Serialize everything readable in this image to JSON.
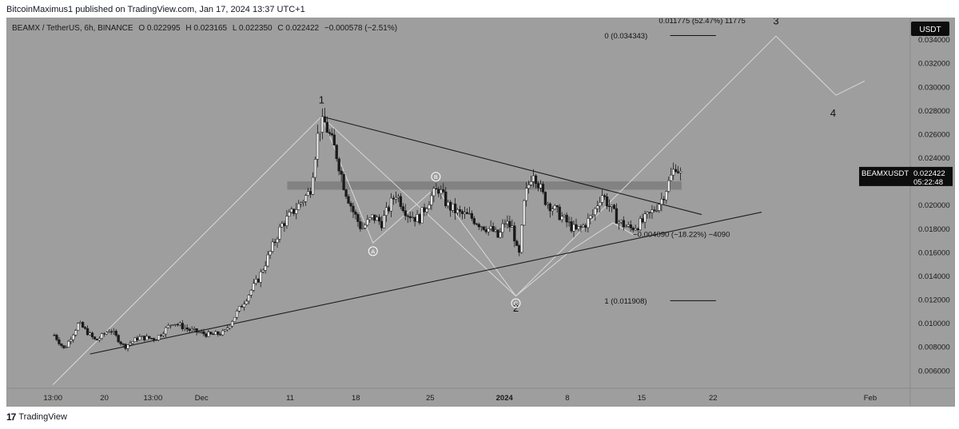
{
  "header": {
    "publisher_line": "BitcoinMaximus1 published on TradingView.com, Jan 17, 2024 13:37 UTC+1"
  },
  "footer": {
    "brand": "TradingView",
    "logo_glyph": "17"
  },
  "chart_data": {
    "type": "candlestick",
    "symbol_line": {
      "name": "BEAMX / TetherUS, 6h, BINANCE",
      "o_label": "O",
      "o": "0.022995",
      "h_label": "H",
      "h": "0.023165",
      "l_label": "L",
      "l": "0.022350",
      "c_label": "C",
      "c": "0.022422",
      "change": "−0.000578 (−2.51%)"
    },
    "currency_badge": "USDT",
    "price_tag": {
      "symbol": "BEAMXUSDT",
      "price": "0.022422",
      "countdown": "05:22:48",
      "value": 0.022422
    },
    "y_ticks": [
      {
        "label": "0.006000",
        "v": 0.006
      },
      {
        "label": "0.008000",
        "v": 0.008
      },
      {
        "label": "0.010000",
        "v": 0.01
      },
      {
        "label": "0.012000",
        "v": 0.012
      },
      {
        "label": "0.014000",
        "v": 0.014
      },
      {
        "label": "0.016000",
        "v": 0.016
      },
      {
        "label": "0.018000",
        "v": 0.018
      },
      {
        "label": "0.020000",
        "v": 0.02
      },
      {
        "label": "0.022000",
        "v": 0.022
      },
      {
        "label": "0.024000",
        "v": 0.024
      },
      {
        "label": "0.026000",
        "v": 0.026
      },
      {
        "label": "0.028000",
        "v": 0.028
      },
      {
        "label": "0.030000",
        "v": 0.03
      },
      {
        "label": "0.032000",
        "v": 0.032
      },
      {
        "label": "0.034000",
        "v": 0.034
      }
    ],
    "x_ticks": [
      {
        "label": "13:00",
        "t": 0.0,
        "bold": false
      },
      {
        "label": "20",
        "t": 1.8,
        "bold": false
      },
      {
        "label": "13:00",
        "t": 3.5,
        "bold": false
      },
      {
        "label": "Dec",
        "t": 5.2,
        "bold": false
      },
      {
        "label": "11",
        "t": 8.3,
        "bold": false
      },
      {
        "label": "18",
        "t": 10.6,
        "bold": false
      },
      {
        "label": "25",
        "t": 13.2,
        "bold": false
      },
      {
        "label": "2024",
        "t": 15.8,
        "bold": true
      },
      {
        "label": "8",
        "t": 18.0,
        "bold": false
      },
      {
        "label": "15",
        "t": 20.6,
        "bold": false
      },
      {
        "label": "22",
        "t": 23.1,
        "bold": false
      },
      {
        "label": "Feb",
        "t": 28.6,
        "bold": false
      }
    ],
    "price_path": [
      [
        0.0,
        0.0048
      ],
      [
        0.05,
        0.009
      ],
      [
        0.4,
        0.0078
      ],
      [
        0.9,
        0.01
      ],
      [
        1.5,
        0.0085
      ],
      [
        2.0,
        0.0095
      ],
      [
        2.5,
        0.008
      ],
      [
        3.0,
        0.0088
      ],
      [
        3.6,
        0.0087
      ],
      [
        4.2,
        0.0101
      ],
      [
        4.8,
        0.0094
      ],
      [
        5.5,
        0.009
      ],
      [
        6.0,
        0.0092
      ],
      [
        6.2,
        0.01
      ],
      [
        6.6,
        0.0115
      ],
      [
        7.2,
        0.0138
      ],
      [
        7.6,
        0.016
      ],
      [
        8.0,
        0.0183
      ],
      [
        8.6,
        0.02
      ],
      [
        9.0,
        0.0212
      ],
      [
        9.3,
        0.0265
      ],
      [
        9.5,
        0.027
      ],
      [
        9.9,
        0.0245
      ],
      [
        10.2,
        0.0215
      ],
      [
        10.5,
        0.0195
      ],
      [
        10.8,
        0.018
      ],
      [
        11.2,
        0.019
      ],
      [
        11.5,
        0.0185
      ],
      [
        12.0,
        0.021
      ],
      [
        12.4,
        0.0193
      ],
      [
        12.8,
        0.0188
      ],
      [
        13.2,
        0.0206
      ],
      [
        13.5,
        0.0214
      ],
      [
        13.8,
        0.02
      ],
      [
        14.2,
        0.0193
      ],
      [
        14.6,
        0.019
      ],
      [
        15.0,
        0.0183
      ],
      [
        15.4,
        0.0178
      ],
      [
        15.6,
        0.0172
      ],
      [
        15.8,
        0.0186
      ],
      [
        16.1,
        0.018
      ],
      [
        16.3,
        0.0153
      ],
      [
        16.5,
        0.0205
      ],
      [
        16.8,
        0.023
      ],
      [
        17.2,
        0.0205
      ],
      [
        17.6,
        0.0195
      ],
      [
        18.0,
        0.0185
      ],
      [
        18.3,
        0.0178
      ],
      [
        18.6,
        0.0183
      ],
      [
        18.9,
        0.0192
      ],
      [
        19.2,
        0.021
      ],
      [
        19.5,
        0.0198
      ],
      [
        19.8,
        0.0186
      ],
      [
        20.2,
        0.018
      ],
      [
        20.6,
        0.0185
      ],
      [
        21.0,
        0.0195
      ],
      [
        21.3,
        0.0205
      ],
      [
        21.6,
        0.0222
      ],
      [
        21.8,
        0.0234
      ],
      [
        22.0,
        0.0224
      ]
    ],
    "triangle_lines": [
      {
        "name": "upper-trendline",
        "from": [
          9.4,
          0.0275
        ],
        "to": [
          22.7,
          0.0192
        ]
      },
      {
        "name": "lower-trendline",
        "from": [
          1.3,
          0.0074
        ],
        "to": [
          24.8,
          0.0194
        ]
      }
    ],
    "elliott_path": [
      [
        0.0,
        0.0048
      ],
      [
        9.4,
        0.0275
      ],
      [
        16.2,
        0.0123
      ],
      [
        25.3,
        0.0343
      ],
      [
        27.4,
        0.0293
      ],
      [
        28.4,
        0.0305
      ]
    ],
    "abc_path": [
      [
        9.4,
        0.0275
      ],
      [
        11.2,
        0.0168
      ],
      [
        13.4,
        0.0215
      ],
      [
        16.2,
        0.0123
      ]
    ],
    "abc_zigzag_right": [
      [
        16.2,
        0.0123
      ],
      [
        18.2,
        0.0163
      ],
      [
        19.6,
        0.0185
      ],
      [
        20.3,
        0.0175
      ]
    ],
    "wave_labels": [
      {
        "label": "1",
        "t": 9.4,
        "v": 0.0286
      },
      {
        "label": "2",
        "t": 16.2,
        "v": 0.011
      },
      {
        "label": "3",
        "t": 25.3,
        "v": 0.0353
      },
      {
        "label": "4",
        "t": 27.3,
        "v": 0.0275
      }
    ],
    "abc_labels": [
      {
        "label": "A",
        "t": 11.2,
        "v": 0.0161
      },
      {
        "label": "B",
        "t": 13.4,
        "v": 0.0224
      },
      {
        "label": "C",
        "t": 16.2,
        "v": 0.0117
      }
    ],
    "resistance_zone": {
      "low": 0.0213,
      "high": 0.022,
      "t_start": 8.2,
      "t_end": 22.0
    },
    "fib_labels": [
      {
        "text": "0 (0.034343)",
        "v": 0.034343,
        "line_start": 21.6,
        "line_end": 23.2,
        "t": 19.3
      },
      {
        "text": "1 (0.011908)",
        "v": 0.011908,
        "line_start": 21.6,
        "line_end": 23.2,
        "t": 19.3
      }
    ],
    "measure_top": {
      "text": "0.011775 (52.47%) 11775",
      "v": 0.0354,
      "t": 21.2
    },
    "measure_mid": {
      "text": "−0.004090 (−18.22%) −4090",
      "v": 0.0173,
      "t": 20.3
    },
    "ylim": [
      0.0045,
      0.0358
    ],
    "t_range": [
      -1.6,
      30.0
    ],
    "colors": {
      "background": "#9e9e9e",
      "candle_up": "#f2f2f2",
      "candle_down": "#1a1a1a",
      "trendline": "#1e1e1e",
      "elliott": "#d9d9d9",
      "zone": "#7c7c7c",
      "price_tag_bg": "#0d0d0d",
      "price_tag_text": "#ffffff"
    }
  }
}
